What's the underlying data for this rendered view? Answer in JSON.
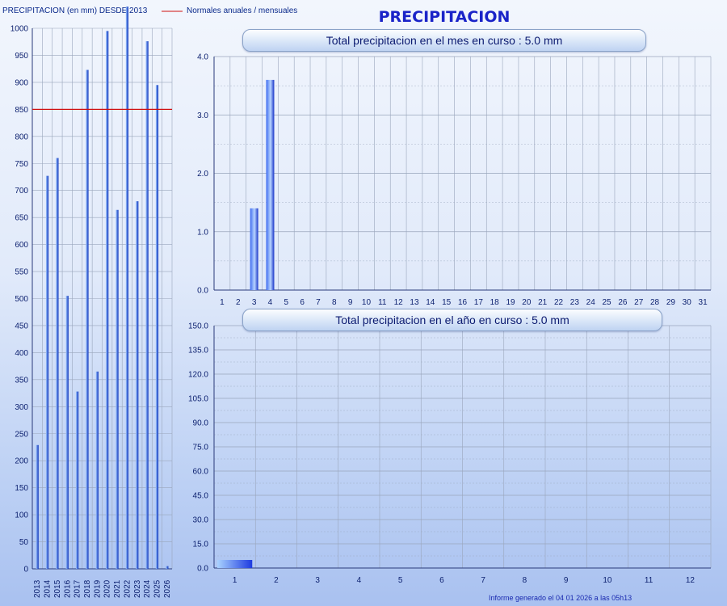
{
  "header": {
    "history_title": "PRECIPITACION (en mm) DESDE 2013",
    "legend_label": "Normales anuales / mensuales",
    "legend_color": "#d01010",
    "main_title": "PRECIPITACION"
  },
  "footer": {
    "generated": "Informe generado el 04 01 2026 a las 05h13"
  },
  "chart_data": [
    {
      "type": "bar",
      "title": "PRECIPITACION (en mm) DESDE 2013",
      "categories": [
        "2013",
        "2014",
        "2015",
        "2016",
        "2017",
        "2018",
        "2019",
        "2020",
        "2021",
        "2022",
        "2023",
        "2024",
        "2025",
        "2026"
      ],
      "series": [
        {
          "values": [
            229,
            727,
            760,
            505,
            328,
            923,
            365,
            995,
            664,
            1040,
            680,
            976,
            895,
            5
          ]
        }
      ],
      "normal": 850,
      "ylim": [
        0,
        1000
      ],
      "yticks": [
        0,
        50,
        100,
        150,
        200,
        250,
        300,
        350,
        400,
        450,
        500,
        550,
        600,
        650,
        700,
        750,
        800,
        850,
        900,
        950,
        1000
      ],
      "grid": true
    },
    {
      "type": "bar",
      "title": "Total precipitacion en el mes en curso : 5.0 mm",
      "categories": [
        "1",
        "2",
        "3",
        "4",
        "5",
        "6",
        "7",
        "8",
        "9",
        "10",
        "11",
        "12",
        "13",
        "14",
        "15",
        "16",
        "17",
        "18",
        "19",
        "20",
        "21",
        "22",
        "23",
        "24",
        "25",
        "26",
        "27",
        "28",
        "29",
        "30",
        "31"
      ],
      "values": [
        0,
        0,
        1.4,
        3.6,
        0,
        0,
        0,
        0,
        0,
        0,
        0,
        0,
        0,
        0,
        0,
        0,
        0,
        0,
        0,
        0,
        0,
        0,
        0,
        0,
        0,
        0,
        0,
        0,
        0,
        0,
        0
      ],
      "ylim": [
        0,
        4
      ],
      "yticks": [
        "0.0",
        "1.0",
        "2.0",
        "3.0",
        "4.0"
      ],
      "grid": true
    },
    {
      "type": "bar",
      "title": "Total precipitacion en el año en curso : 5.0 mm",
      "categories": [
        "1",
        "2",
        "3",
        "4",
        "5",
        "6",
        "7",
        "8",
        "9",
        "10",
        "11",
        "12"
      ],
      "values": [
        5.0,
        0,
        0,
        0,
        0,
        0,
        0,
        0,
        0,
        0,
        0,
        0
      ],
      "ylim": [
        0,
        150
      ],
      "yticks": [
        "0.0",
        "15.0",
        "30.0",
        "45.0",
        "60.0",
        "75.0",
        "90.0",
        "105.0",
        "120.0",
        "135.0",
        "150.0"
      ],
      "grid": true
    }
  ]
}
